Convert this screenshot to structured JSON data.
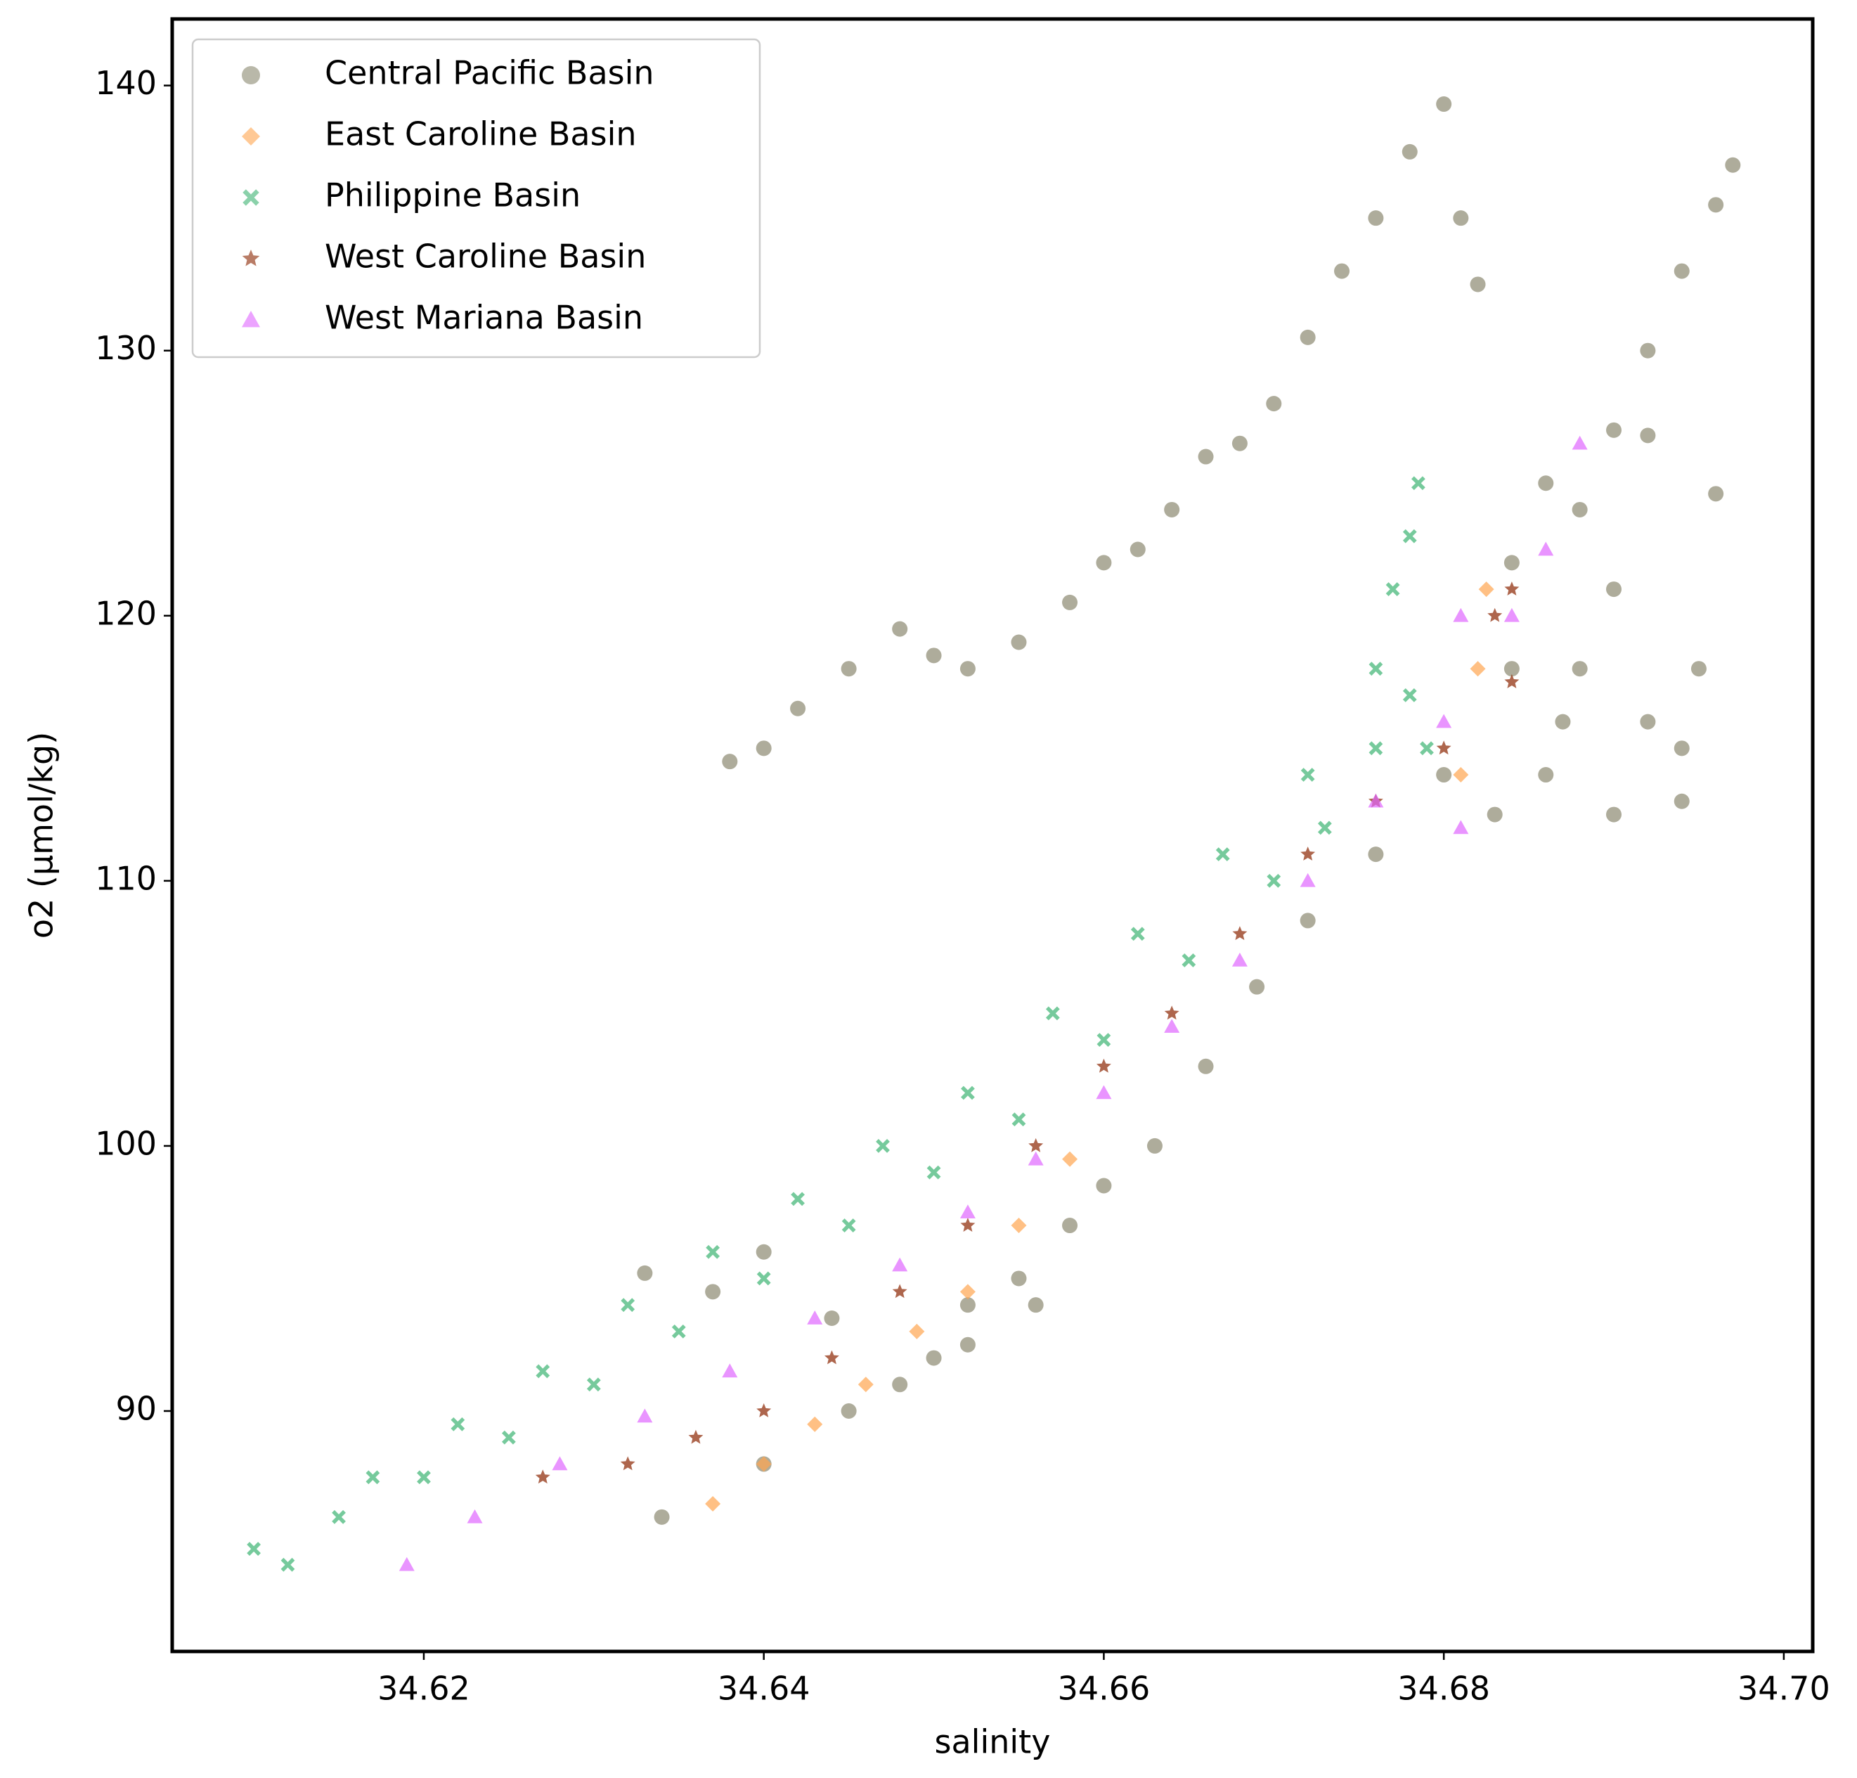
{
  "chart_data": {
    "type": "scatter",
    "x_label": "salinity",
    "y_label": "o2 (µmol/kg)",
    "xlim": [
      34.6052,
      34.7017
    ],
    "ylim": [
      80.93,
      142.51
    ],
    "xticks": [
      34.62,
      34.64,
      34.66,
      34.68,
      {
        "value": 34.7,
        "label": "34.70"
      }
    ],
    "yticks": [
      90,
      100,
      110,
      120,
      130,
      140
    ],
    "legend": "upper left",
    "series": [
      {
        "name": "Central Pacific Basin",
        "color": "#8b8870",
        "marker": "circle",
        "x": [
          34.638,
          34.64,
          34.642,
          34.645,
          34.648,
          34.65,
          34.652,
          34.655,
          34.658,
          34.66,
          34.662,
          34.664,
          34.666,
          34.668,
          34.67,
          34.672,
          34.674,
          34.676,
          34.678,
          34.68,
          34.634,
          34.64,
          34.645,
          34.65,
          34.652,
          34.655,
          34.658,
          34.66,
          34.663,
          34.666,
          34.669,
          34.672,
          34.676,
          34.68,
          34.684,
          34.688,
          34.69,
          34.692,
          34.694,
          34.696,
          34.697,
          34.633,
          34.637,
          34.64,
          34.644,
          34.648,
          34.652,
          34.656,
          34.681,
          34.682,
          34.684,
          34.686,
          34.688,
          34.69,
          34.692,
          34.694,
          34.695,
          34.696,
          34.69,
          34.686,
          34.692,
          34.687,
          34.694,
          34.683
        ],
        "y": [
          114.5,
          115,
          116.5,
          118,
          119.5,
          118.5,
          118,
          119,
          120.5,
          122,
          122.5,
          124,
          126,
          126.5,
          128,
          130.5,
          133,
          135,
          137.5,
          139.3,
          86,
          88,
          90,
          92,
          94,
          95,
          97,
          98.5,
          100,
          103,
          106,
          108.5,
          111,
          114,
          118,
          124,
          127,
          130,
          133,
          135.5,
          137,
          95.2,
          94.5,
          96,
          93.5,
          91,
          92.5,
          94,
          135,
          132.5,
          122,
          125,
          118,
          121,
          116,
          113,
          118,
          124.6,
          112.5,
          114,
          126.8,
          116,
          115,
          112.5
        ]
      },
      {
        "name": "East Caroline Basin",
        "color": "#ffa54f",
        "marker": "diamond",
        "x": [
          34.637,
          34.64,
          34.643,
          34.646,
          34.649,
          34.652,
          34.655,
          34.658,
          34.681,
          34.682,
          34.6825
        ],
        "y": [
          86.5,
          88,
          89.5,
          91,
          93,
          94.5,
          97,
          99.5,
          114,
          118,
          121
        ]
      },
      {
        "name": "Philippine Basin",
        "color": "#3cb371",
        "marker": "x",
        "x": [
          34.61,
          34.615,
          34.62,
          34.625,
          34.63,
          34.635,
          34.64,
          34.645,
          34.65,
          34.655,
          34.66,
          34.665,
          34.67,
          34.673,
          34.676,
          34.678,
          34.679,
          34.612,
          34.617,
          34.622,
          34.627,
          34.632,
          34.637,
          34.642,
          34.647,
          34.652,
          34.657,
          34.662,
          34.667,
          34.672,
          34.676,
          34.677,
          34.678,
          34.6785
        ],
        "y": [
          84.8,
          86,
          87.5,
          89,
          91,
          93,
          95,
          97,
          99,
          101,
          104,
          107,
          110,
          112,
          115,
          117,
          115,
          84.2,
          87.5,
          89.5,
          91.5,
          94,
          96,
          98,
          100,
          102,
          105,
          108,
          111,
          114,
          118,
          121,
          123,
          125
        ]
      },
      {
        "name": "West Caroline Basin",
        "color": "#8b2500",
        "marker": "star",
        "x": [
          34.627,
          34.632,
          34.636,
          34.64,
          34.644,
          34.648,
          34.652,
          34.656,
          34.66,
          34.664,
          34.668,
          34.672,
          34.676,
          34.68,
          34.684,
          34.683,
          34.684
        ],
        "y": [
          87.5,
          88,
          89,
          90,
          92,
          94.5,
          97,
          100,
          103,
          105,
          108,
          111,
          113,
          115,
          117.5,
          120,
          121
        ]
      },
      {
        "name": "West Mariana Basin",
        "color": "#e066ff",
        "marker": "triangle",
        "x": [
          34.619,
          34.623,
          34.628,
          34.633,
          34.638,
          34.643,
          34.648,
          34.652,
          34.656,
          34.66,
          34.664,
          34.668,
          34.672,
          34.676,
          34.68,
          34.684,
          34.686,
          34.688,
          34.681,
          34.681
        ],
        "y": [
          84.2,
          86,
          88,
          89.8,
          91.5,
          93.5,
          95.5,
          97.5,
          99.5,
          102,
          104.5,
          107,
          110,
          113,
          116,
          120,
          122.5,
          126.5,
          112,
          120
        ]
      }
    ]
  }
}
